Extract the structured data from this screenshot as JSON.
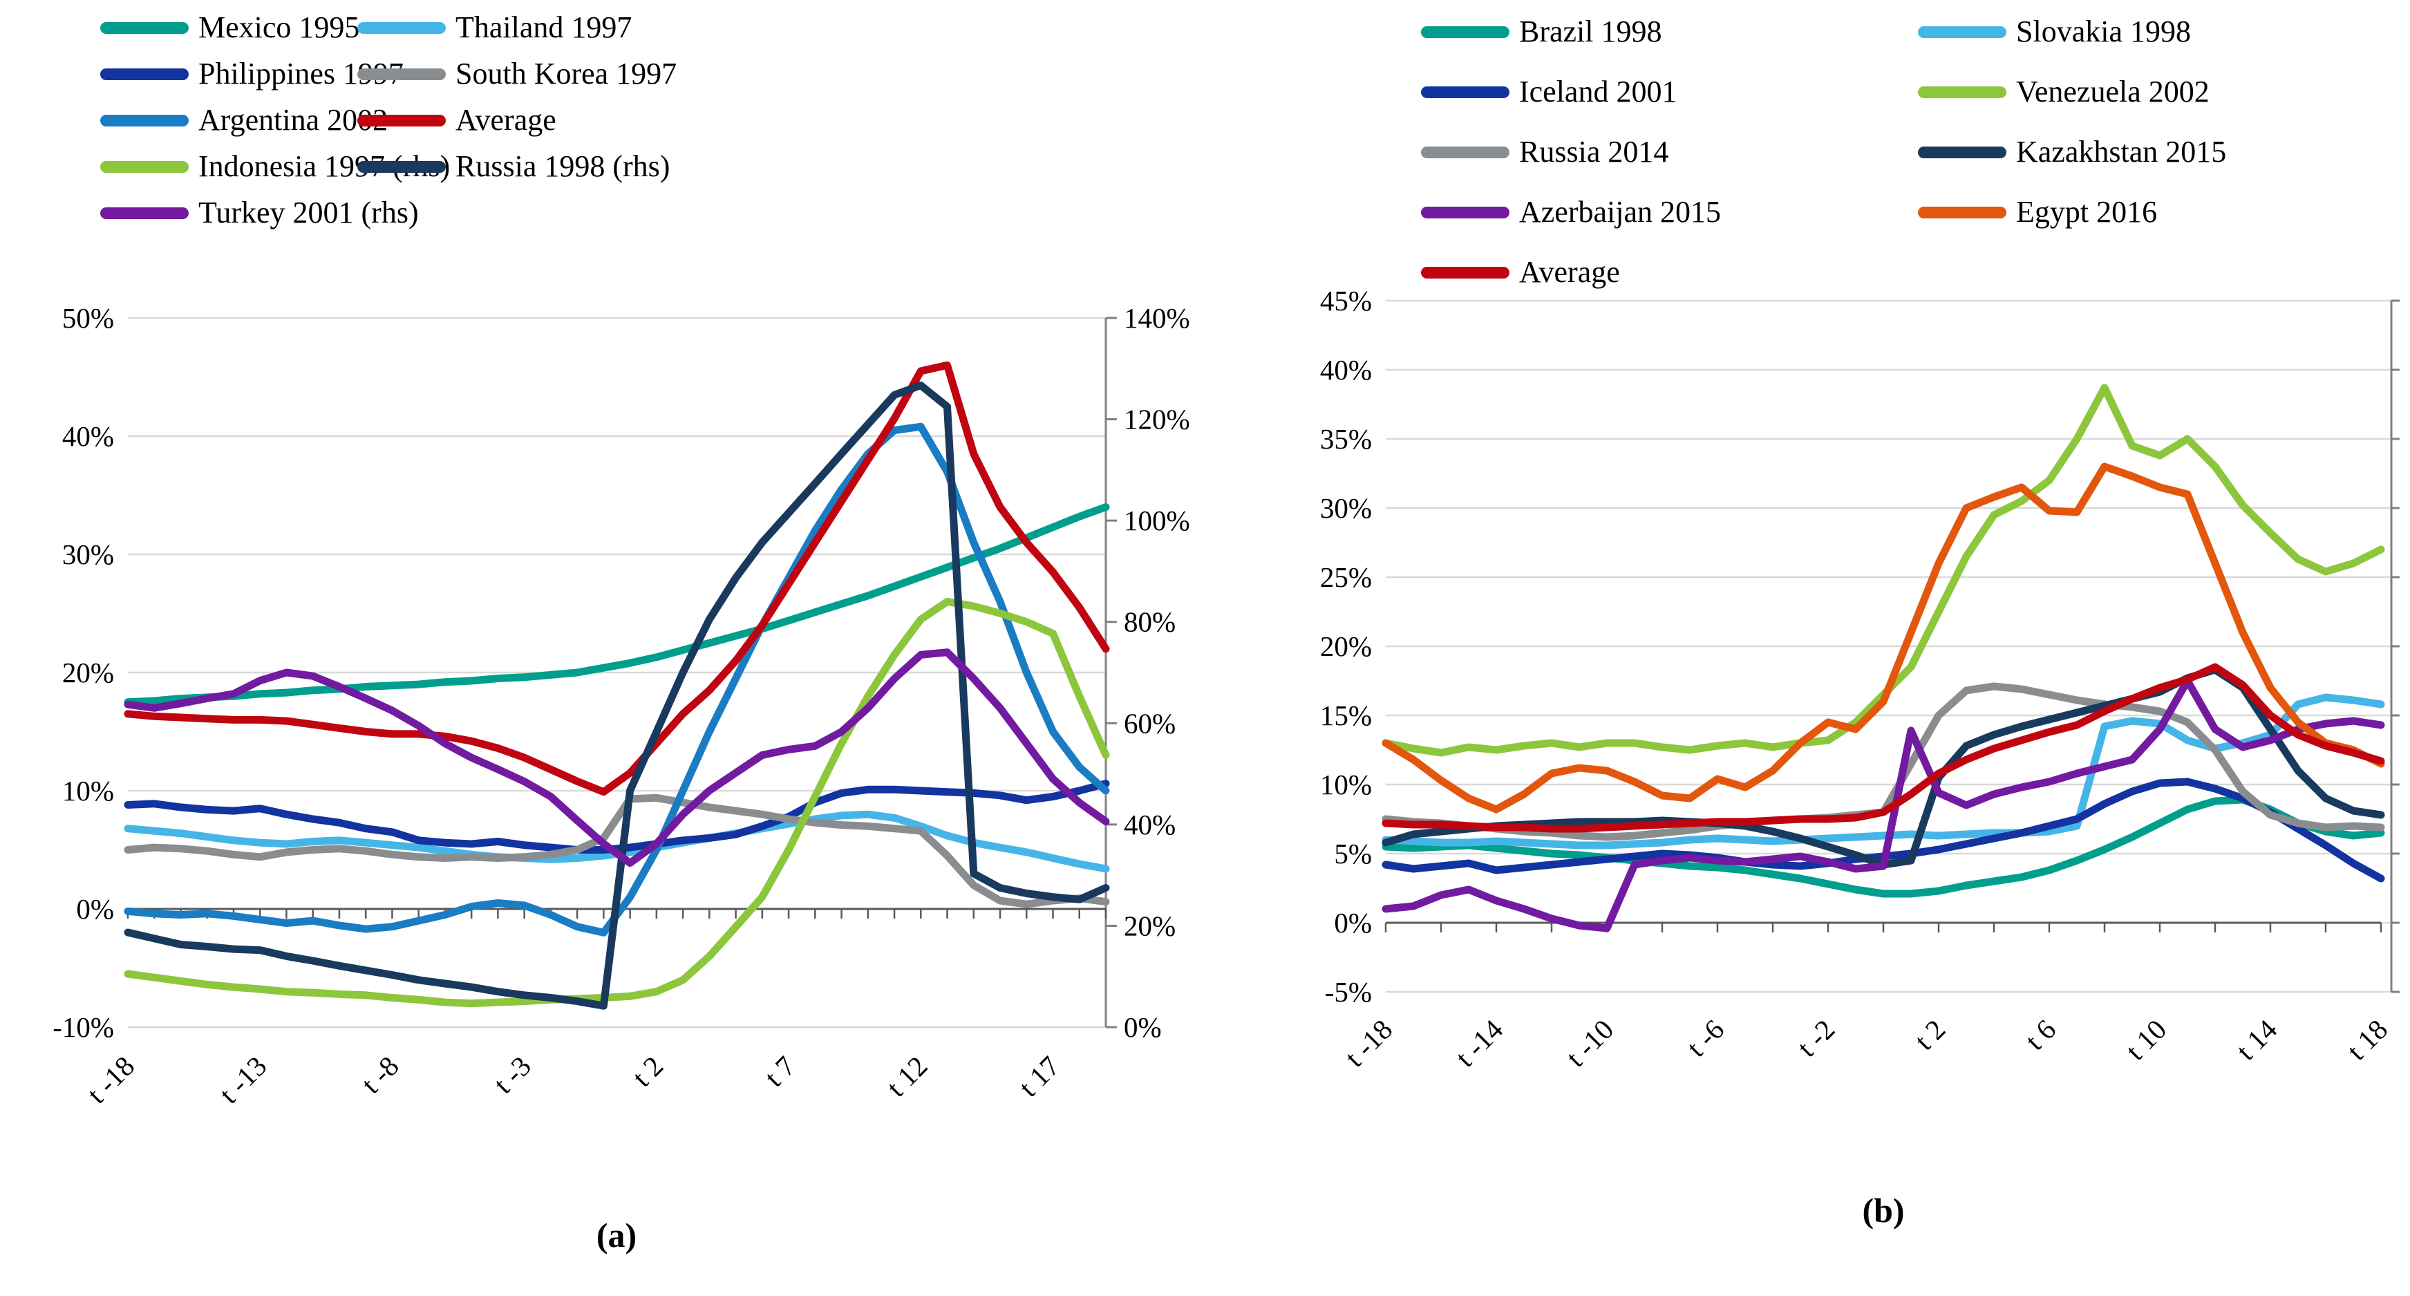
{
  "figure": {
    "description": "Two line charts of inflation (%) in months around crisis (t), panels (a) and (b)"
  },
  "chart_data": [
    {
      "id": "a",
      "type": "line",
      "caption": "(a)",
      "title": "",
      "xlabel": "",
      "ylabel": "",
      "x_start": -18,
      "x_end": 19,
      "x_tick_labels": [
        "t -18",
        "t -13",
        "t -8",
        "t -3",
        "t 2",
        "t 7",
        "t 12",
        "t 17"
      ],
      "x_tick_values": [
        -18,
        -13,
        -8,
        -3,
        2,
        7,
        12,
        17
      ],
      "left_axis": {
        "min": -10,
        "max": 50,
        "step": 10,
        "tick_labels": [
          "50%",
          "40%",
          "30%",
          "20%",
          "10%",
          "0%",
          "-10%"
        ]
      },
      "right_axis": {
        "min": 0,
        "max": 140,
        "step": 20,
        "tick_labels": [
          "140%",
          "120%",
          "100%",
          "80%",
          "60%",
          "40%",
          "20%",
          "0%"
        ]
      },
      "grid": true,
      "legend": {
        "columns": [
          [
            {
              "label": "Mexico 1995",
              "color": "#009E8C"
            },
            {
              "label": "Philippines 1997",
              "color": "#1233A0"
            },
            {
              "label": "Argentina 2002",
              "color": "#1A7DC4"
            },
            {
              "label": "Indonesia 1997 (rhs)",
              "color": "#8CC63C"
            },
            {
              "label": "Turkey 2001 (rhs)",
              "color": "#721AA0"
            }
          ],
          [
            {
              "label": "Thailand 1997",
              "color": "#45B5E8"
            },
            {
              "label": "South Korea 1997",
              "color": "#8A8D90"
            },
            {
              "label": "Average",
              "color": "#C00510"
            },
            {
              "label": "Russia 1998 (rhs)",
              "color": "#19395E"
            }
          ]
        ]
      },
      "series": [
        {
          "name": "Mexico 1995",
          "color": "#009E8C",
          "axis": "left",
          "values": [
            17.5,
            17.6,
            17.8,
            17.9,
            18.0,
            18.2,
            18.3,
            18.5,
            18.6,
            18.8,
            18.9,
            19.0,
            19.2,
            19.3,
            19.5,
            19.6,
            19.8,
            20.0,
            20.4,
            20.8,
            21.3,
            21.9,
            22.5,
            23.1,
            23.7,
            24.4,
            25.1,
            25.8,
            26.5,
            27.3,
            28.1,
            28.9,
            29.7,
            30.5,
            31.4,
            32.3,
            33.2,
            34.0
          ]
        },
        {
          "name": "Thailand 1997",
          "color": "#45B5E8",
          "axis": "left",
          "values": [
            6.8,
            6.6,
            6.4,
            6.1,
            5.8,
            5.6,
            5.5,
            5.7,
            5.8,
            5.6,
            5.4,
            5.2,
            4.9,
            4.6,
            4.4,
            4.3,
            4.2,
            4.3,
            4.5,
            4.8,
            5.2,
            5.6,
            6.0,
            6.4,
            6.8,
            7.2,
            7.6,
            7.9,
            8.0,
            7.7,
            7.0,
            6.2,
            5.6,
            5.2,
            4.8,
            4.3,
            3.8,
            3.4
          ]
        },
        {
          "name": "Philippines 1997",
          "color": "#1233A0",
          "axis": "left",
          "values": [
            8.8,
            8.9,
            8.6,
            8.4,
            8.3,
            8.5,
            8.0,
            7.6,
            7.3,
            6.8,
            6.5,
            5.8,
            5.6,
            5.5,
            5.7,
            5.4,
            5.2,
            5.0,
            5.0,
            5.2,
            5.5,
            5.8,
            6.0,
            6.3,
            7.0,
            7.8,
            9.0,
            9.8,
            10.1,
            10.1,
            10.0,
            9.9,
            9.8,
            9.6,
            9.2,
            9.5,
            10.0,
            10.6
          ]
        },
        {
          "name": "South Korea 1997",
          "color": "#8A8D90",
          "axis": "left",
          "values": [
            5.0,
            5.2,
            5.1,
            4.9,
            4.6,
            4.4,
            4.8,
            5.0,
            5.1,
            4.9,
            4.6,
            4.4,
            4.3,
            4.4,
            4.3,
            4.4,
            4.6,
            5.0,
            6.0,
            9.3,
            9.4,
            9.0,
            8.6,
            8.3,
            8.0,
            7.6,
            7.3,
            7.1,
            7.0,
            6.8,
            6.6,
            4.5,
            2.0,
            0.7,
            0.4,
            0.7,
            0.9,
            0.6
          ]
        },
        {
          "name": "Argentina 2002",
          "color": "#1A7DC4",
          "axis": "left",
          "values": [
            -0.2,
            -0.4,
            -0.5,
            -0.4,
            -0.6,
            -0.9,
            -1.2,
            -1.0,
            -1.4,
            -1.7,
            -1.5,
            -1.0,
            -0.5,
            0.2,
            0.5,
            0.3,
            -0.5,
            -1.5,
            -2.0,
            1.0,
            5.0,
            10.0,
            15.0,
            19.5,
            24.0,
            28.0,
            32.0,
            35.5,
            38.5,
            40.5,
            40.8,
            37.0,
            31.0,
            26.0,
            20.0,
            15.0,
            12.0,
            10.0
          ]
        },
        {
          "name": "Average",
          "color": "#C00510",
          "axis": "left",
          "values": [
            16.5,
            16.3,
            16.2,
            16.1,
            16.0,
            16.0,
            15.9,
            15.6,
            15.3,
            15.0,
            14.8,
            14.8,
            14.6,
            14.2,
            13.6,
            12.8,
            11.8,
            10.8,
            9.9,
            11.5,
            14.0,
            16.5,
            18.5,
            21.0,
            24.0,
            27.5,
            31.0,
            34.5,
            38.0,
            41.5,
            45.5,
            46.0,
            38.5,
            34.0,
            31.0,
            28.5,
            25.5,
            22.0
          ]
        },
        {
          "name": "Indonesia 1997 (rhs)",
          "color": "#8CC63C",
          "axis": "right",
          "values": [
            10.5,
            9.8,
            9.1,
            8.4,
            7.9,
            7.5,
            7.0,
            6.8,
            6.5,
            6.3,
            5.8,
            5.4,
            4.9,
            4.7,
            4.9,
            5.1,
            5.4,
            5.6,
            5.8,
            6.1,
            7.0,
            9.3,
            14.0,
            19.8,
            25.7,
            35.0,
            45.5,
            56.0,
            65.3,
            73.5,
            80.5,
            84.0,
            83.1,
            81.7,
            80.0,
            77.7,
            65.3,
            53.7
          ]
        },
        {
          "name": "Russia 1998 (rhs)",
          "color": "#19395E",
          "axis": "right",
          "values": [
            18.7,
            17.5,
            16.3,
            15.9,
            15.4,
            15.2,
            14.0,
            13.1,
            12.1,
            11.2,
            10.3,
            9.3,
            8.6,
            7.9,
            7.0,
            6.3,
            5.8,
            5.1,
            4.2,
            46.7,
            58.3,
            70.0,
            80.5,
            88.7,
            95.7,
            101.5,
            107.3,
            113.2,
            119.0,
            124.8,
            126.7,
            122.5,
            30.3,
            27.5,
            26.4,
            25.7,
            25.2,
            27.5
          ]
        },
        {
          "name": "Turkey 2001 (rhs)",
          "color": "#721AA0",
          "axis": "right",
          "values": [
            63.7,
            63.0,
            63.9,
            64.9,
            65.8,
            68.4,
            70.0,
            69.3,
            67.2,
            64.9,
            62.5,
            59.5,
            56.0,
            53.2,
            50.9,
            48.5,
            45.5,
            40.8,
            36.2,
            32.4,
            36.2,
            42.0,
            46.7,
            50.2,
            53.7,
            54.8,
            55.5,
            58.3,
            63.0,
            68.8,
            73.5,
            74.0,
            68.8,
            63.0,
            56.0,
            49.0,
            44.3,
            40.6
          ]
        }
      ]
    },
    {
      "id": "b",
      "type": "line",
      "caption": "(b)",
      "title": "",
      "xlabel": "",
      "ylabel": "",
      "x_start": -18,
      "x_end": 18,
      "x_tick_labels": [
        "t -18",
        "t -14",
        "t -10",
        "t -6",
        "t -2",
        "t 2",
        "t 6",
        "t 10",
        "t 14",
        "t 18"
      ],
      "x_tick_values": [
        -18,
        -14,
        -10,
        -6,
        -2,
        2,
        6,
        10,
        14,
        18
      ],
      "left_axis": {
        "min": -5,
        "max": 45,
        "step": 5,
        "tick_labels": [
          "45%",
          "40%",
          "35%",
          "30%",
          "25%",
          "20%",
          "15%",
          "10%",
          "5%",
          "0%",
          "-5%"
        ]
      },
      "grid": true,
      "legend": {
        "columns": [
          [
            {
              "label": "Brazil 1998",
              "color": "#009E8C"
            },
            {
              "label": "Iceland 2001",
              "color": "#1233A0"
            },
            {
              "label": "Russia 2014",
              "color": "#8A8D90"
            },
            {
              "label": "Azerbaijan 2015",
              "color": "#721AA0"
            },
            {
              "label": "Average",
              "color": "#C00510"
            }
          ],
          [
            {
              "label": "Slovakia 1998",
              "color": "#45B5E8"
            },
            {
              "label": "Venezuela 2002",
              "color": "#8CC63C"
            },
            {
              "label": "Kazakhstan 2015",
              "color": "#19395E"
            },
            {
              "label": "Egypt 2016",
              "color": "#E2570D"
            }
          ]
        ]
      },
      "series": [
        {
          "name": "Brazil 1998",
          "color": "#009E8C",
          "axis": "left",
          "values": [
            5.5,
            5.4,
            5.5,
            5.6,
            5.4,
            5.2,
            5.0,
            4.9,
            4.7,
            4.5,
            4.3,
            4.1,
            4.0,
            3.8,
            3.5,
            3.2,
            2.8,
            2.4,
            2.1,
            2.1,
            2.3,
            2.7,
            3.0,
            3.3,
            3.8,
            4.5,
            5.3,
            6.2,
            7.2,
            8.2,
            8.8,
            8.9,
            8.2,
            7.2,
            6.6,
            6.3,
            6.5
          ]
        },
        {
          "name": "Slovakia 1998",
          "color": "#45B5E8",
          "axis": "left",
          "values": [
            6.0,
            5.9,
            5.8,
            5.8,
            5.9,
            5.8,
            5.7,
            5.6,
            5.6,
            5.7,
            5.8,
            6.0,
            6.1,
            6.0,
            5.9,
            6.0,
            6.1,
            6.2,
            6.3,
            6.4,
            6.3,
            6.4,
            6.5,
            6.5,
            6.6,
            7.0,
            14.2,
            14.6,
            14.4,
            13.2,
            12.6,
            13.0,
            13.6,
            15.8,
            16.3,
            16.1,
            15.8
          ]
        },
        {
          "name": "Iceland 2001",
          "color": "#1233A0",
          "axis": "left",
          "values": [
            4.2,
            3.9,
            4.1,
            4.3,
            3.8,
            4.0,
            4.2,
            4.4,
            4.6,
            4.8,
            5.0,
            4.9,
            4.7,
            4.4,
            4.2,
            4.1,
            4.3,
            4.6,
            4.8,
            5.0,
            5.3,
            5.7,
            6.1,
            6.5,
            7.0,
            7.5,
            8.6,
            9.5,
            10.1,
            10.2,
            9.7,
            9.0,
            8.0,
            6.8,
            5.6,
            4.3,
            3.2
          ]
        },
        {
          "name": "Venezuela 2002",
          "color": "#8CC63C",
          "axis": "left",
          "values": [
            13.0,
            12.6,
            12.3,
            12.7,
            12.5,
            12.8,
            13.0,
            12.7,
            13.0,
            13.0,
            12.7,
            12.5,
            12.8,
            13.0,
            12.7,
            13.0,
            13.2,
            14.5,
            16.5,
            18.5,
            22.5,
            26.5,
            29.5,
            30.5,
            32.0,
            35.0,
            38.7,
            34.5,
            33.8,
            35.0,
            33.0,
            30.2,
            28.2,
            26.3,
            25.4,
            26.0,
            27.0
          ]
        },
        {
          "name": "Russia 2014",
          "color": "#8A8D90",
          "axis": "left",
          "values": [
            7.5,
            7.3,
            7.2,
            7.0,
            6.8,
            6.6,
            6.5,
            6.3,
            6.2,
            6.3,
            6.5,
            6.7,
            7.0,
            7.2,
            7.4,
            7.5,
            7.6,
            7.8,
            8.0,
            11.5,
            15.0,
            16.8,
            17.1,
            16.9,
            16.5,
            16.1,
            15.8,
            15.6,
            15.3,
            14.5,
            12.5,
            9.5,
            7.8,
            7.2,
            6.9,
            7.0,
            6.9
          ]
        },
        {
          "name": "Kazakhstan 2015",
          "color": "#19395E",
          "axis": "left",
          "values": [
            5.8,
            6.4,
            6.6,
            6.8,
            7.0,
            7.1,
            7.2,
            7.3,
            7.3,
            7.3,
            7.4,
            7.3,
            7.2,
            7.0,
            6.6,
            6.1,
            5.5,
            4.9,
            4.2,
            4.5,
            10.5,
            12.8,
            13.6,
            14.2,
            14.7,
            15.2,
            15.7,
            16.2,
            16.7,
            17.7,
            18.3,
            17.0,
            14.0,
            11.0,
            9.0,
            8.1,
            7.8
          ]
        },
        {
          "name": "Azerbaijan 2015",
          "color": "#721AA0",
          "axis": "left",
          "values": [
            1.0,
            1.2,
            2.0,
            2.4,
            1.6,
            1.0,
            0.3,
            -0.2,
            -0.4,
            4.2,
            4.5,
            4.7,
            4.5,
            4.4,
            4.6,
            4.8,
            4.4,
            3.9,
            4.1,
            13.9,
            9.4,
            8.5,
            9.3,
            9.8,
            10.2,
            10.8,
            11.3,
            11.8,
            14.0,
            17.5,
            14.0,
            12.7,
            13.2,
            14.0,
            14.4,
            14.6,
            14.3
          ]
        },
        {
          "name": "Egypt 2016",
          "color": "#E2570D",
          "axis": "left",
          "values": [
            13.0,
            11.8,
            10.3,
            9.0,
            8.2,
            9.3,
            10.8,
            11.2,
            11.0,
            10.2,
            9.2,
            9.0,
            10.4,
            9.8,
            11.0,
            13.0,
            14.5,
            14.0,
            16.0,
            21.0,
            26.0,
            30.0,
            30.8,
            31.5,
            29.8,
            29.7,
            33.0,
            32.3,
            31.5,
            31.0,
            26.0,
            21.0,
            17.0,
            14.5,
            13.0,
            12.5,
            11.5
          ]
        },
        {
          "name": "Average",
          "color": "#C00510",
          "axis": "left",
          "values": [
            7.2,
            7.1,
            7.1,
            7.0,
            6.9,
            6.9,
            6.8,
            6.8,
            6.9,
            7.0,
            7.1,
            7.2,
            7.3,
            7.3,
            7.4,
            7.5,
            7.5,
            7.6,
            8.0,
            9.3,
            10.8,
            11.8,
            12.6,
            13.2,
            13.8,
            14.3,
            15.3,
            16.2,
            17.0,
            17.6,
            18.5,
            17.2,
            15.0,
            13.6,
            12.8,
            12.3,
            11.7
          ]
        }
      ]
    }
  ],
  "style_colors": {
    "gridline": "#D9D9D9",
    "axis_line": "#808080",
    "category_axis": "#595959",
    "text": "#000000",
    "background": "#FFFFFF"
  }
}
